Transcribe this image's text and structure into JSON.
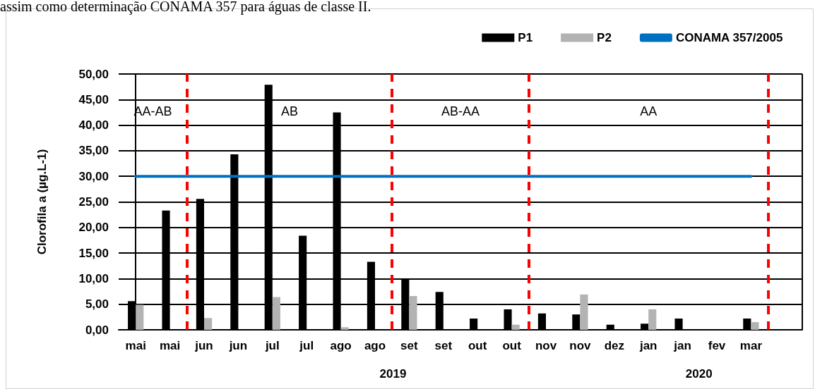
{
  "chart_data": {
    "type": "bar",
    "ylabel": "Clorofila a (µg.L-1)",
    "categories": [
      "mai",
      "mai",
      "jun",
      "jun",
      "jul",
      "jul",
      "ago",
      "ago",
      "set",
      "set",
      "out",
      "out",
      "nov",
      "nov",
      "dez",
      "jan",
      "jan",
      "fev",
      "mar",
      null
    ],
    "series": [
      {
        "name": "P1",
        "color": "#000000",
        "values": [
          5.6,
          23.3,
          25.6,
          34.3,
          47.9,
          18.4,
          42.5,
          13.3,
          10.0,
          7.4,
          2.2,
          4.0,
          3.2,
          3.0,
          1.0,
          1.2,
          2.2,
          null,
          2.2,
          null
        ]
      },
      {
        "name": "P2",
        "color": "#b3b3b3",
        "values": [
          4.9,
          null,
          2.3,
          null,
          6.4,
          null,
          0.5,
          null,
          6.6,
          null,
          null,
          1.0,
          null,
          6.9,
          null,
          4.0,
          null,
          null,
          1.5,
          null
        ]
      },
      {
        "name": "CONAMA 357/2005",
        "type": "line",
        "color": "#0070c0",
        "values": [
          30,
          30,
          30,
          30,
          30,
          30,
          30,
          30,
          30,
          30,
          30,
          30,
          30,
          30,
          30,
          30,
          30,
          30,
          30,
          null
        ]
      }
    ],
    "ylim": [
      0,
      50
    ],
    "yticks": [
      {
        "value": 0,
        "label": "0,00"
      },
      {
        "value": 5,
        "label": "5,00"
      },
      {
        "value": 10,
        "label": "10,00"
      },
      {
        "value": 15,
        "label": "15,00"
      },
      {
        "value": 20,
        "label": "20,00"
      },
      {
        "value": 25,
        "label": "25,00"
      },
      {
        "value": 30,
        "label": "30,00"
      },
      {
        "value": 35,
        "label": "35,00"
      },
      {
        "value": 40,
        "label": "40,00"
      },
      {
        "value": 45,
        "label": "45,00"
      },
      {
        "value": 50,
        "label": "50,00"
      }
    ],
    "grid": "y",
    "legend": "top right",
    "marker": "none",
    "annotations": [
      "assim como determinação CONAMA 357 para águas de classe II.",
      "AA-AB",
      "AB",
      "AB-AA",
      "AA",
      "2019",
      "2020"
    ]
  }
}
